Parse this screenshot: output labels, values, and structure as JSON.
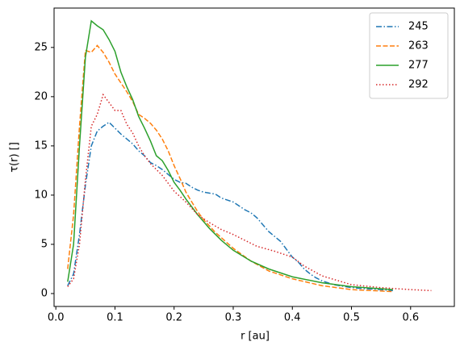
{
  "chart_data": {
    "type": "line",
    "xlabel": "r [au]",
    "ylabel": "τ(r) []",
    "xlim": [
      -0.003,
      0.674
    ],
    "ylim": [
      -1.31,
      29.0
    ],
    "xticks": [
      {
        "value": 0,
        "label": "0.0"
      },
      0.1,
      0.2,
      0.3,
      0.4,
      0.5,
      0.6
    ],
    "yticks": [
      0,
      5,
      10,
      15,
      20,
      25
    ],
    "legend": "upper right",
    "series": [
      {
        "name": "245",
        "color": "#1f77b4",
        "linestyle": "dashdot",
        "x": [
          0.02,
          0.03,
          0.04,
          0.05,
          0.06,
          0.07,
          0.08,
          0.09,
          0.1,
          0.11,
          0.12,
          0.13,
          0.14,
          0.15,
          0.16,
          0.17,
          0.18,
          0.19,
          0.2,
          0.21,
          0.22,
          0.23,
          0.24,
          0.25,
          0.26,
          0.27,
          0.28,
          0.29,
          0.3,
          0.31,
          0.32,
          0.33,
          0.34,
          0.35,
          0.36,
          0.37,
          0.38,
          0.39,
          0.4,
          0.41,
          0.42,
          0.43,
          0.44,
          0.45,
          0.46,
          0.47,
          0.48,
          0.5,
          0.52,
          0.55,
          0.57
        ],
        "values": [
          0.8,
          2,
          6,
          11,
          15,
          16.5,
          17,
          17.4,
          16.8,
          16.2,
          15.7,
          15.2,
          14.5,
          14,
          13.3,
          13,
          12.6,
          12.1,
          11.6,
          11.3,
          11.2,
          10.8,
          10.5,
          10.3,
          10.2,
          10.1,
          9.7,
          9.5,
          9.3,
          8.9,
          8.5,
          8.2,
          7.7,
          7.0,
          6.3,
          5.8,
          5.3,
          4.5,
          3.7,
          3.2,
          2.5,
          2.0,
          1.6,
          1.3,
          1.1,
          0.9,
          0.8,
          0.6,
          0.5,
          0.4,
          0.3
        ]
      },
      {
        "name": "263",
        "color": "#ff7f0e",
        "linestyle": "dashed",
        "x": [
          0.02,
          0.03,
          0.04,
          0.05,
          0.06,
          0.07,
          0.08,
          0.09,
          0.1,
          0.11,
          0.12,
          0.13,
          0.14,
          0.15,
          0.16,
          0.17,
          0.18,
          0.19,
          0.2,
          0.21,
          0.22,
          0.23,
          0.24,
          0.25,
          0.27,
          0.3,
          0.33,
          0.36,
          0.4,
          0.45,
          0.5,
          0.57
        ],
        "values": [
          2.5,
          8,
          17,
          24.7,
          24.5,
          25.2,
          24.5,
          23.5,
          22.3,
          21.4,
          20.5,
          19.5,
          18.2,
          17.8,
          17.3,
          16.6,
          15.7,
          14.5,
          13,
          11.7,
          10.3,
          9.3,
          8.3,
          7.5,
          6.2,
          4.6,
          3.3,
          2.3,
          1.5,
          0.8,
          0.4,
          0.2
        ]
      },
      {
        "name": "277",
        "color": "#2ca02c",
        "linestyle": "solid",
        "x": [
          0.02,
          0.03,
          0.04,
          0.05,
          0.06,
          0.07,
          0.08,
          0.09,
          0.1,
          0.11,
          0.12,
          0.13,
          0.14,
          0.15,
          0.16,
          0.17,
          0.18,
          0.19,
          0.2,
          0.21,
          0.22,
          0.24,
          0.26,
          0.28,
          0.3,
          0.33,
          0.36,
          0.4,
          0.45,
          0.5,
          0.57
        ],
        "values": [
          1.2,
          5,
          15,
          24,
          27.7,
          27.2,
          26.8,
          25.8,
          24.6,
          22.5,
          21,
          19.7,
          18,
          16.8,
          15.5,
          14,
          13.5,
          12.5,
          11.3,
          10.5,
          9.6,
          8,
          6.6,
          5.4,
          4.4,
          3.3,
          2.5,
          1.7,
          1.1,
          0.7,
          0.4
        ]
      },
      {
        "name": "292",
        "color": "#d62728",
        "linestyle": "dotted",
        "x": [
          0.02,
          0.03,
          0.04,
          0.05,
          0.06,
          0.07,
          0.08,
          0.09,
          0.1,
          0.11,
          0.12,
          0.13,
          0.14,
          0.15,
          0.16,
          0.17,
          0.18,
          0.19,
          0.2,
          0.22,
          0.24,
          0.26,
          0.28,
          0.3,
          0.32,
          0.34,
          0.37,
          0.4,
          0.42,
          0.45,
          0.5,
          0.55,
          0.6,
          0.635
        ],
        "values": [
          0.7,
          1.5,
          5,
          11.5,
          17,
          18.2,
          20.2,
          19.4,
          18.6,
          18.6,
          17.2,
          16.3,
          15,
          14,
          13.2,
          12.6,
          12,
          11.2,
          10.4,
          9.3,
          8,
          7.2,
          6.5,
          6,
          5.4,
          4.8,
          4.3,
          3.7,
          2.8,
          1.8,
          0.9,
          0.6,
          0.4,
          0.3
        ]
      }
    ]
  }
}
